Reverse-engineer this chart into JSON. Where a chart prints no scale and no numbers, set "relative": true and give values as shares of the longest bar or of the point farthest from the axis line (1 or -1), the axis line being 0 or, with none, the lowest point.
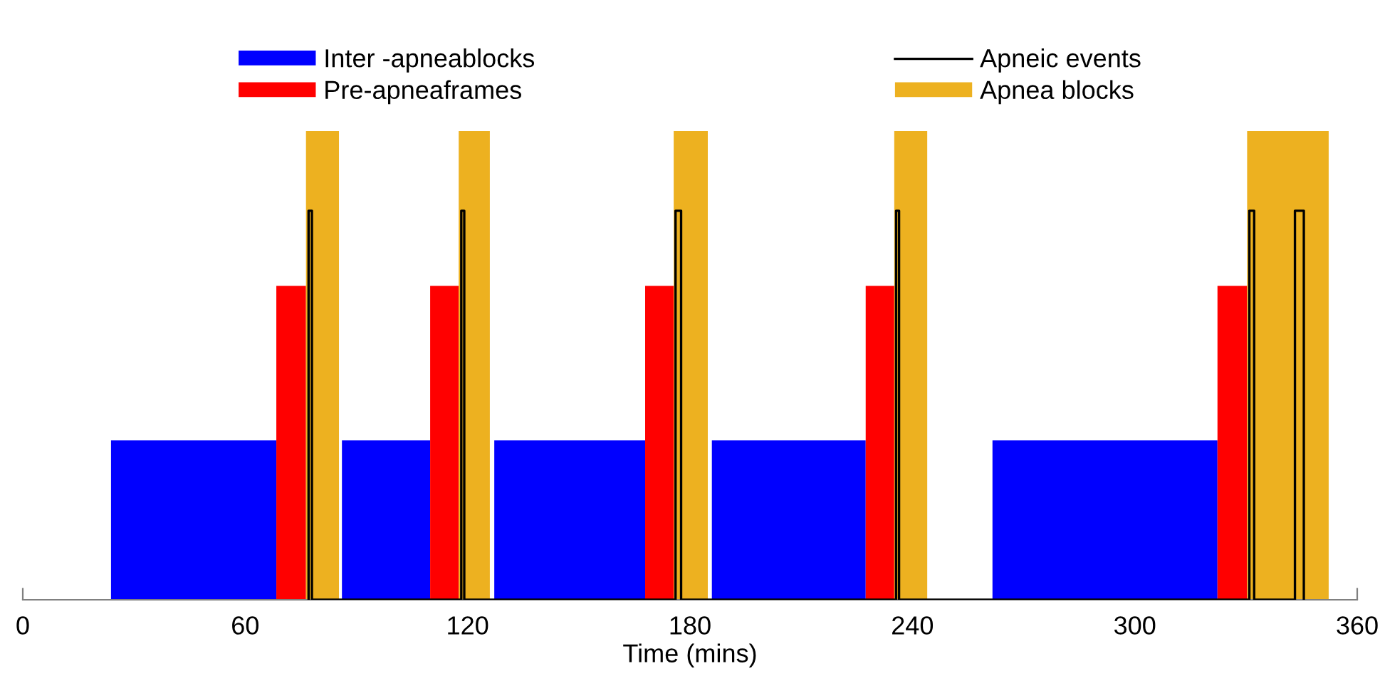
{
  "chart_data": {
    "type": "area",
    "relative": true,
    "xlabel": "Time (mins)",
    "xlim": [
      0,
      360
    ],
    "xticks": [
      0,
      60,
      120,
      180,
      240,
      300,
      360
    ],
    "legend": "top",
    "grid": false,
    "tick_labels": "x",
    "series": [
      {
        "name": "Inter -apneablocks",
        "color": "#0000ff",
        "x": [
          23.8,
          23.8,
          68.4,
          68.4,
          86.1,
          86.1,
          109.9,
          109.9,
          127.2,
          127.2,
          167.9,
          167.9,
          185.9,
          185.9,
          227.4,
          227.4,
          261.6,
          261.6,
          322.3,
          322.3
        ],
        "values": [
          0,
          0.34,
          0.34,
          0,
          0,
          0.34,
          0.34,
          0,
          0,
          0.34,
          0.34,
          0,
          0,
          0.34,
          0.34,
          0,
          0,
          0.34,
          0.34,
          0
        ]
      },
      {
        "name": "Pre-apneaframes",
        "color": "#ff0000",
        "x": [
          68.4,
          68.4,
          76.4,
          76.4,
          109.9,
          109.9,
          117.6,
          117.6,
          167.9,
          167.9,
          175.6,
          175.6,
          227.4,
          227.4,
          235.1,
          235.1,
          322.3,
          322.3,
          330.3,
          330.3
        ],
        "values": [
          0,
          0.67,
          0.67,
          0,
          0,
          0.67,
          0.67,
          0,
          0,
          0.67,
          0.67,
          0,
          0,
          0.67,
          0.67,
          0,
          0,
          0.67,
          0.67,
          0
        ]
      },
      {
        "name": "Apneic events",
        "color": "#000000",
        "type": "line",
        "x": [
          77.1,
          77.1,
          78,
          78,
          118.3,
          118.3,
          119.1,
          119.1,
          176.1,
          176.1,
          177.6,
          177.6,
          235.6,
          235.6,
          236.4,
          236.4,
          330.9,
          330.9,
          332.2,
          332.2,
          343.2,
          343.2,
          344.4,
          344.4,
          345.6,
          345.6
        ],
        "values": [
          0,
          0.83,
          0.83,
          0,
          0,
          0.83,
          0.83,
          0,
          0,
          0.83,
          0.83,
          0,
          0,
          0.83,
          0.83,
          0,
          0,
          0.83,
          0.83,
          0,
          0,
          0.83,
          0.83,
          0.83,
          0.83,
          0
        ]
      },
      {
        "name": "Apnea blocks",
        "color": "#edb120",
        "x": [
          76.4,
          76.4,
          85.3,
          85.3,
          117.6,
          117.6,
          126,
          126,
          175.6,
          175.6,
          184.8,
          184.8,
          235.1,
          235.1,
          244,
          244,
          330.3,
          330.3,
          352.3,
          352.3
        ],
        "values": [
          0,
          1,
          1,
          0,
          0,
          1,
          1,
          0,
          0,
          1,
          1,
          0,
          0,
          1,
          1,
          0,
          0,
          1,
          1,
          0
        ]
      }
    ]
  }
}
